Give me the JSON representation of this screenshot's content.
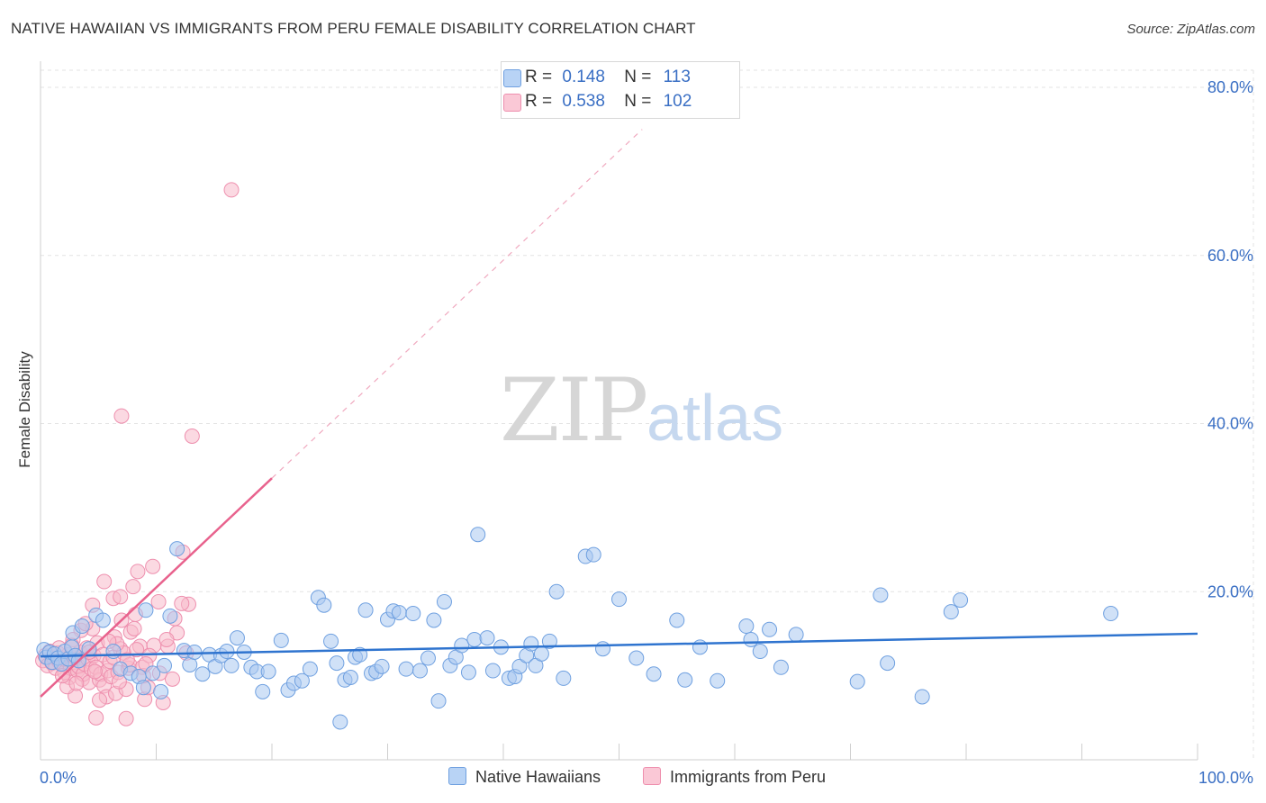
{
  "header": {
    "title": "NATIVE HAWAIIAN VS IMMIGRANTS FROM PERU FEMALE DISABILITY CORRELATION CHART",
    "source": "Source: ZipAtlas.com"
  },
  "legend_top": {
    "rows": [
      {
        "r_label": "R =",
        "r_value": "0.148",
        "n_label": "N =",
        "n_value": "113"
      },
      {
        "r_label": "R =",
        "r_value": "0.538",
        "n_label": "N =",
        "n_value": "102"
      }
    ]
  },
  "legend_bottom": {
    "items": [
      "Native Hawaiians",
      "Immigrants from Peru"
    ]
  },
  "watermark": {
    "zip": "ZIP",
    "atlas": "atlas"
  },
  "colors": {
    "blue_fill": "#a9c8f0",
    "blue_stroke": "#6fa0e0",
    "blue_line": "#2f74cf",
    "pink_fill": "#f7b9cb",
    "pink_stroke": "#ee8fae",
    "pink_line": "#e8628d",
    "axis_text": "#3a6fc4",
    "grid": "#e3e3e3"
  },
  "chart_data": {
    "type": "scatter",
    "title": "NATIVE HAWAIIAN VS IMMIGRANTS FROM PERU FEMALE DISABILITY CORRELATION CHART",
    "xlabel": "",
    "ylabel": "Female Disability",
    "xlim": [
      0,
      100
    ],
    "ylim": [
      0,
      80
    ],
    "x_tick_labels": [
      "0.0%",
      "100.0%"
    ],
    "y_ticks": [
      20,
      40,
      60,
      80
    ],
    "y_tick_labels": [
      "20.0%",
      "40.0%",
      "60.0%",
      "80.0%"
    ],
    "grid": true,
    "legend_position": "top-center",
    "series": [
      {
        "name": "Native Hawaiians",
        "R": 0.148,
        "N": 113,
        "trend": {
          "x0": 0,
          "y0": 12.3,
          "x1": 100,
          "y1": 15.0
        },
        "points": [
          [
            0.3,
            13.1
          ],
          [
            0.5,
            12.2
          ],
          [
            0.8,
            12.8
          ],
          [
            1.0,
            11.6
          ],
          [
            1.2,
            12.6
          ],
          [
            1.5,
            12.1
          ],
          [
            1.8,
            11.4
          ],
          [
            2.1,
            12.9
          ],
          [
            2.4,
            12.0
          ],
          [
            2.7,
            13.4
          ],
          [
            3.0,
            12.4
          ],
          [
            3.3,
            11.8
          ],
          [
            2.8,
            15.1
          ],
          [
            3.6,
            15.9
          ],
          [
            4.2,
            13.2
          ],
          [
            4.8,
            17.2
          ],
          [
            5.4,
            16.6
          ],
          [
            6.3,
            12.9
          ],
          [
            6.9,
            10.8
          ],
          [
            7.8,
            10.3
          ],
          [
            8.5,
            9.9
          ],
          [
            9.1,
            17.8
          ],
          [
            8.9,
            8.6
          ],
          [
            9.7,
            10.3
          ],
          [
            10.4,
            8.1
          ],
          [
            10.7,
            11.2
          ],
          [
            11.2,
            17.1
          ],
          [
            11.8,
            25.1
          ],
          [
            12.4,
            13.0
          ],
          [
            12.9,
            11.3
          ],
          [
            13.3,
            12.8
          ],
          [
            14.0,
            10.2
          ],
          [
            14.6,
            12.5
          ],
          [
            15.1,
            11.1
          ],
          [
            15.6,
            12.4
          ],
          [
            16.1,
            12.9
          ],
          [
            16.5,
            11.2
          ],
          [
            17.0,
            14.5
          ],
          [
            17.6,
            12.8
          ],
          [
            18.2,
            11.0
          ],
          [
            18.7,
            10.5
          ],
          [
            19.2,
            8.1
          ],
          [
            19.7,
            10.5
          ],
          [
            20.8,
            14.2
          ],
          [
            21.4,
            8.3
          ],
          [
            21.9,
            9.1
          ],
          [
            22.6,
            9.4
          ],
          [
            23.3,
            10.8
          ],
          [
            24.0,
            19.3
          ],
          [
            24.5,
            18.4
          ],
          [
            25.1,
            14.1
          ],
          [
            25.6,
            11.5
          ],
          [
            25.9,
            4.5
          ],
          [
            26.3,
            9.5
          ],
          [
            26.8,
            9.8
          ],
          [
            27.2,
            12.2
          ],
          [
            27.6,
            12.5
          ],
          [
            28.1,
            17.8
          ],
          [
            28.6,
            10.3
          ],
          [
            29.0,
            10.5
          ],
          [
            29.5,
            11.1
          ],
          [
            30.0,
            16.7
          ],
          [
            30.5,
            17.7
          ],
          [
            31.0,
            17.5
          ],
          [
            31.6,
            10.8
          ],
          [
            32.2,
            17.4
          ],
          [
            32.8,
            10.6
          ],
          [
            33.5,
            12.1
          ],
          [
            34.0,
            16.6
          ],
          [
            34.4,
            7.0
          ],
          [
            34.9,
            18.8
          ],
          [
            35.4,
            11.2
          ],
          [
            35.9,
            12.2
          ],
          [
            36.4,
            13.6
          ],
          [
            37.0,
            10.4
          ],
          [
            37.5,
            14.3
          ],
          [
            37.8,
            26.8
          ],
          [
            38.6,
            14.5
          ],
          [
            39.1,
            10.6
          ],
          [
            39.8,
            13.4
          ],
          [
            40.5,
            9.7
          ],
          [
            41.0,
            9.9
          ],
          [
            41.4,
            11.1
          ],
          [
            42.0,
            12.4
          ],
          [
            42.4,
            13.8
          ],
          [
            42.8,
            11.2
          ],
          [
            43.3,
            12.6
          ],
          [
            44.0,
            14.1
          ],
          [
            44.6,
            20.0
          ],
          [
            45.2,
            9.7
          ],
          [
            47.1,
            24.2
          ],
          [
            47.8,
            24.4
          ],
          [
            48.6,
            13.2
          ],
          [
            50.0,
            19.1
          ],
          [
            51.5,
            12.1
          ],
          [
            53.0,
            10.2
          ],
          [
            55.0,
            16.6
          ],
          [
            55.7,
            9.5
          ],
          [
            57.0,
            13.4
          ],
          [
            58.5,
            9.4
          ],
          [
            61.0,
            15.9
          ],
          [
            61.4,
            14.3
          ],
          [
            62.2,
            12.9
          ],
          [
            63.0,
            15.5
          ],
          [
            64.0,
            11.0
          ],
          [
            65.3,
            14.9
          ],
          [
            70.6,
            9.3
          ],
          [
            72.6,
            19.6
          ],
          [
            73.2,
            11.5
          ],
          [
            76.2,
            7.5
          ],
          [
            78.7,
            17.6
          ],
          [
            79.5,
            19.0
          ],
          [
            92.5,
            17.4
          ]
        ]
      },
      {
        "name": "Immigrants from Peru",
        "R": 0.538,
        "N": 102,
        "trend": {
          "x0": 0,
          "y0": 7.5,
          "x1": 20,
          "y1": 33.5,
          "dashed_to": {
            "x": 52,
            "y": 75
          }
        },
        "points": [
          [
            0.2,
            11.8
          ],
          [
            0.4,
            12.4
          ],
          [
            0.6,
            11.2
          ],
          [
            0.8,
            12.9
          ],
          [
            1.0,
            11.5
          ],
          [
            1.1,
            12.2
          ],
          [
            1.3,
            10.9
          ],
          [
            1.5,
            12.7
          ],
          [
            1.6,
            11.7
          ],
          [
            1.8,
            12.1
          ],
          [
            2.0,
            11.3
          ],
          [
            2.1,
            10.4
          ],
          [
            2.2,
            11.9
          ],
          [
            2.4,
            12.5
          ],
          [
            2.5,
            9.8
          ],
          [
            2.6,
            10.9
          ],
          [
            2.8,
            11.6
          ],
          [
            2.9,
            12.3
          ],
          [
            3.0,
            7.6
          ],
          [
            3.2,
            10.6
          ],
          [
            3.3,
            11.1
          ],
          [
            3.4,
            12.8
          ],
          [
            3.6,
            9.6
          ],
          [
            3.7,
            10.2
          ],
          [
            3.8,
            11.4
          ],
          [
            4.0,
            13.3
          ],
          [
            4.1,
            12.0
          ],
          [
            4.2,
            9.2
          ],
          [
            4.4,
            10.8
          ],
          [
            4.5,
            15.6
          ],
          [
            4.6,
            12.4
          ],
          [
            4.8,
            11.0
          ],
          [
            4.9,
            13.9
          ],
          [
            5.1,
            9.5
          ],
          [
            5.2,
            10.2
          ],
          [
            5.4,
            12.5
          ],
          [
            5.5,
            8.8
          ],
          [
            5.7,
            7.5
          ],
          [
            5.8,
            10.6
          ],
          [
            6.0,
            11.7
          ],
          [
            6.1,
            9.9
          ],
          [
            6.3,
            12.2
          ],
          [
            6.4,
            14.6
          ],
          [
            6.5,
            7.9
          ],
          [
            6.7,
            10.4
          ],
          [
            6.9,
            13.2
          ],
          [
            7.0,
            16.6
          ],
          [
            7.2,
            12.7
          ],
          [
            7.4,
            8.4
          ],
          [
            7.6,
            10.9
          ],
          [
            7.7,
            11.3
          ],
          [
            7.8,
            15.2
          ],
          [
            8.0,
            20.6
          ],
          [
            8.2,
            17.3
          ],
          [
            8.4,
            22.4
          ],
          [
            8.6,
            13.5
          ],
          [
            8.8,
            11.0
          ],
          [
            9.0,
            7.2
          ],
          [
            9.3,
            8.6
          ],
          [
            9.7,
            23.0
          ],
          [
            10.2,
            18.8
          ],
          [
            10.6,
            6.8
          ],
          [
            11.0,
            13.5
          ],
          [
            11.4,
            9.6
          ],
          [
            11.8,
            15.1
          ],
          [
            12.3,
            24.7
          ],
          [
            12.8,
            18.5
          ],
          [
            13.1,
            38.5
          ],
          [
            7.0,
            40.9
          ],
          [
            16.5,
            67.8
          ],
          [
            4.5,
            18.4
          ],
          [
            5.5,
            21.2
          ],
          [
            6.3,
            19.2
          ],
          [
            6.9,
            19.4
          ],
          [
            3.5,
            15.4
          ],
          [
            9.8,
            13.6
          ],
          [
            2.8,
            14.3
          ],
          [
            1.6,
            13.3
          ],
          [
            4.8,
            5.0
          ],
          [
            7.4,
            4.9
          ],
          [
            10.3,
            10.3
          ],
          [
            8.1,
            15.6
          ],
          [
            11.6,
            16.8
          ],
          [
            12.2,
            18.6
          ],
          [
            3.9,
            16.2
          ],
          [
            6.6,
            13.8
          ],
          [
            2.3,
            8.7
          ],
          [
            5.1,
            7.1
          ],
          [
            8.9,
            10.0
          ],
          [
            9.4,
            12.4
          ],
          [
            6.8,
            9.3
          ],
          [
            4.2,
            12.8
          ],
          [
            3.1,
            9.1
          ],
          [
            1.9,
            10.0
          ],
          [
            7.5,
            11.9
          ],
          [
            10.9,
            14.3
          ],
          [
            12.6,
            12.7
          ],
          [
            5.9,
            14.1
          ],
          [
            8.3,
            13.1
          ],
          [
            4.7,
            10.5
          ],
          [
            2.7,
            13.6
          ],
          [
            9.1,
            11.4
          ]
        ]
      }
    ]
  }
}
